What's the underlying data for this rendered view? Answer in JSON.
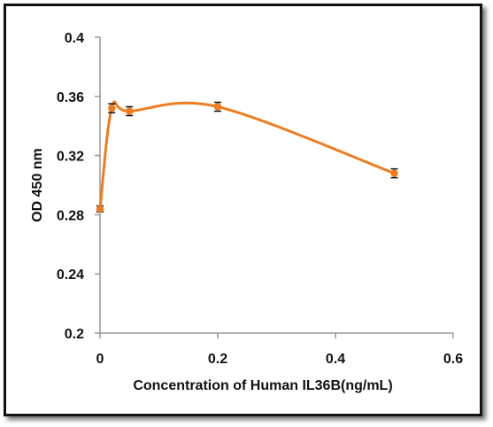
{
  "chart_data": {
    "type": "line",
    "xlabel": "Concentration of Human IL36B(ng/mL)",
    "ylabel": "OD 450 nm",
    "xlim": [
      0,
      0.6
    ],
    "ylim": [
      0.2,
      0.4
    ],
    "x_ticks": [
      "0",
      "0.2",
      "0.4",
      "0.6"
    ],
    "y_ticks": [
      "0.2",
      "0.24",
      "0.28",
      "0.32",
      "0.36",
      "0.4"
    ],
    "grid": false,
    "smooth": true,
    "series": [
      {
        "color": "#f07c1e",
        "points": [
          {
            "x": 0,
            "y": 0.284,
            "err": 0.002
          },
          {
            "x": 0.02,
            "y": 0.352,
            "err": 0.003
          },
          {
            "x": 0.05,
            "y": 0.35,
            "err": 0.003
          },
          {
            "x": 0.2,
            "y": 0.353,
            "err": 0.003
          },
          {
            "x": 0.5,
            "y": 0.308,
            "err": 0.003
          }
        ]
      }
    ]
  }
}
